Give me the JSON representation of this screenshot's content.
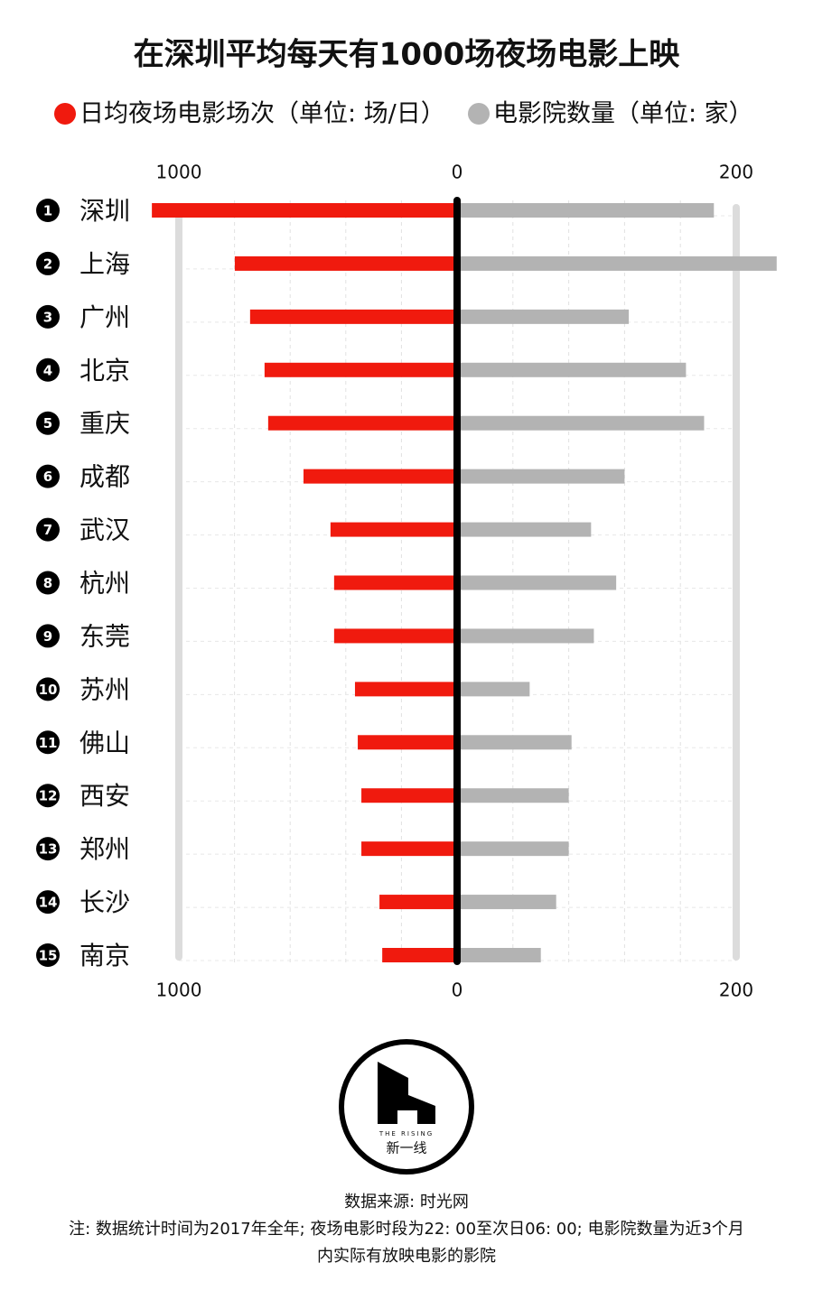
{
  "chart_data": {
    "type": "butterfly",
    "title": "在深圳平均每天有1000场夜场电影上映",
    "ranks": [
      1,
      2,
      3,
      4,
      5,
      6,
      7,
      8,
      9,
      10,
      11,
      12,
      13,
      14,
      15
    ],
    "categories": [
      "深圳",
      "上海",
      "广州",
      "北京",
      "重庆",
      "成都",
      "武汉",
      "杭州",
      "东莞",
      "苏州",
      "佛山",
      "西安",
      "郑州",
      "长沙",
      "南京"
    ],
    "series": [
      {
        "name": "日均夜场电影场次（单位: 场/日）",
        "color": "#f01a0e",
        "axis": "x",
        "values": [
          1097,
          799,
          744,
          692,
          679,
          552,
          455,
          442,
          442,
          367,
          357,
          344,
          344,
          279,
          269
        ]
      },
      {
        "name": "电影院数量（单位: 家）",
        "color": "#b3b3b3",
        "axis": "x2",
        "values": [
          184,
          229,
          123,
          164,
          177,
          120,
          96,
          114,
          98,
          52,
          82,
          80,
          80,
          71,
          60
        ]
      }
    ],
    "xlim": [
      0,
      1000
    ],
    "xticks": [
      1000,
      0
    ],
    "x2lim": [
      0,
      200
    ],
    "x2ticks": [
      0,
      200
    ],
    "source": "数据来源: 时光网",
    "notes": [
      "注: 数据统计时间为2017年全年; 夜场电影时段为22: 00至次日06: 00; 电影院数量为近3个月",
      "内实际有放映电影的影院"
    ],
    "logo": {
      "tagline": "THE RISING",
      "name": "新一线"
    }
  }
}
